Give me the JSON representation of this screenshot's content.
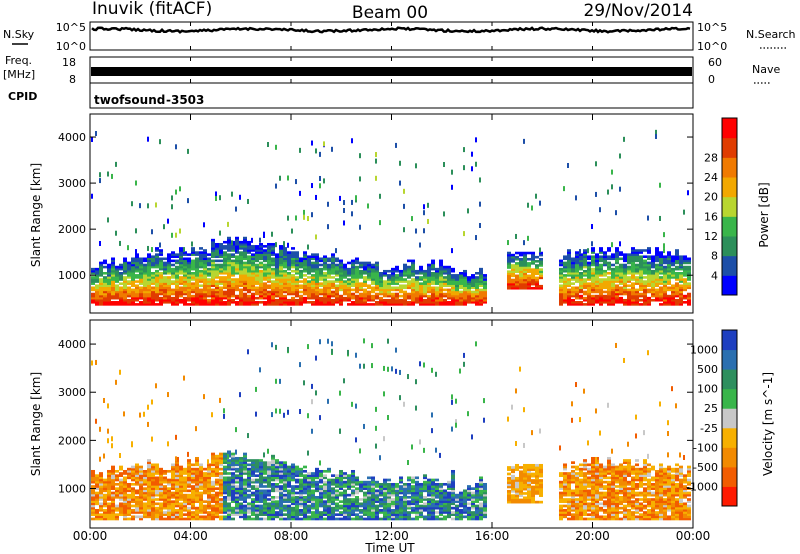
{
  "header": {
    "station": "Inuvik (fitACF)",
    "beam": "Beam 00",
    "date": "29/Nov/2014"
  },
  "panels": {
    "nsky": {
      "label": "N.Sky",
      "ticks": [
        "10^5",
        "10^0"
      ]
    },
    "nsearch": {
      "label": "N.Search",
      "ticks": [
        "10^5",
        "10^0"
      ]
    },
    "freq": {
      "label1": "Freq.",
      "label2": "[MHz]",
      "ticks": [
        "18",
        "8"
      ]
    },
    "nave": {
      "label": "Nave",
      "ticks": [
        "60",
        "0"
      ]
    },
    "cpid": {
      "label": "CPID",
      "program": "twofsound",
      "id": "-3503"
    }
  },
  "chart_data": [
    {
      "type": "heatmap",
      "name": "power",
      "ylabel": "Slant Range [km]",
      "yticks": [
        1000,
        2000,
        3000,
        4000
      ],
      "ylim": [
        180,
        4500
      ],
      "colorbar": {
        "label": "Power [dB]",
        "ticks": [
          "4",
          "8",
          "12",
          "16",
          "20",
          "24",
          "28"
        ],
        "colors": [
          "#0000ff",
          "#1d4fa8",
          "#2c8f5a",
          "#39b54a",
          "#b8d630",
          "#f2a800",
          "#f07a00",
          "#e03c00",
          "#ff0000"
        ]
      }
    },
    {
      "type": "heatmap",
      "name": "velocity",
      "ylabel": "Slant Range [km]",
      "yticks": [
        1000,
        2000,
        3000,
        4000
      ],
      "ylim": [
        180,
        4500
      ],
      "colorbar": {
        "label": "Velocity [m s^-1]",
        "ticks": [
          "-1000",
          "-500",
          "-100",
          "-25",
          "25",
          "100",
          "500",
          "1000"
        ],
        "colors": [
          "#ff1a00",
          "#f25c00",
          "#f28a00",
          "#f7b000",
          "#c8c8c8",
          "#39b54a",
          "#2e8f5e",
          "#2a6fb0",
          "#1e3fc0"
        ]
      }
    }
  ],
  "xaxis": {
    "label": "Time UT",
    "ticks": [
      "00:00",
      "04:00",
      "08:00",
      "12:00",
      "16:00",
      "20:00",
      "00:00"
    ]
  }
}
